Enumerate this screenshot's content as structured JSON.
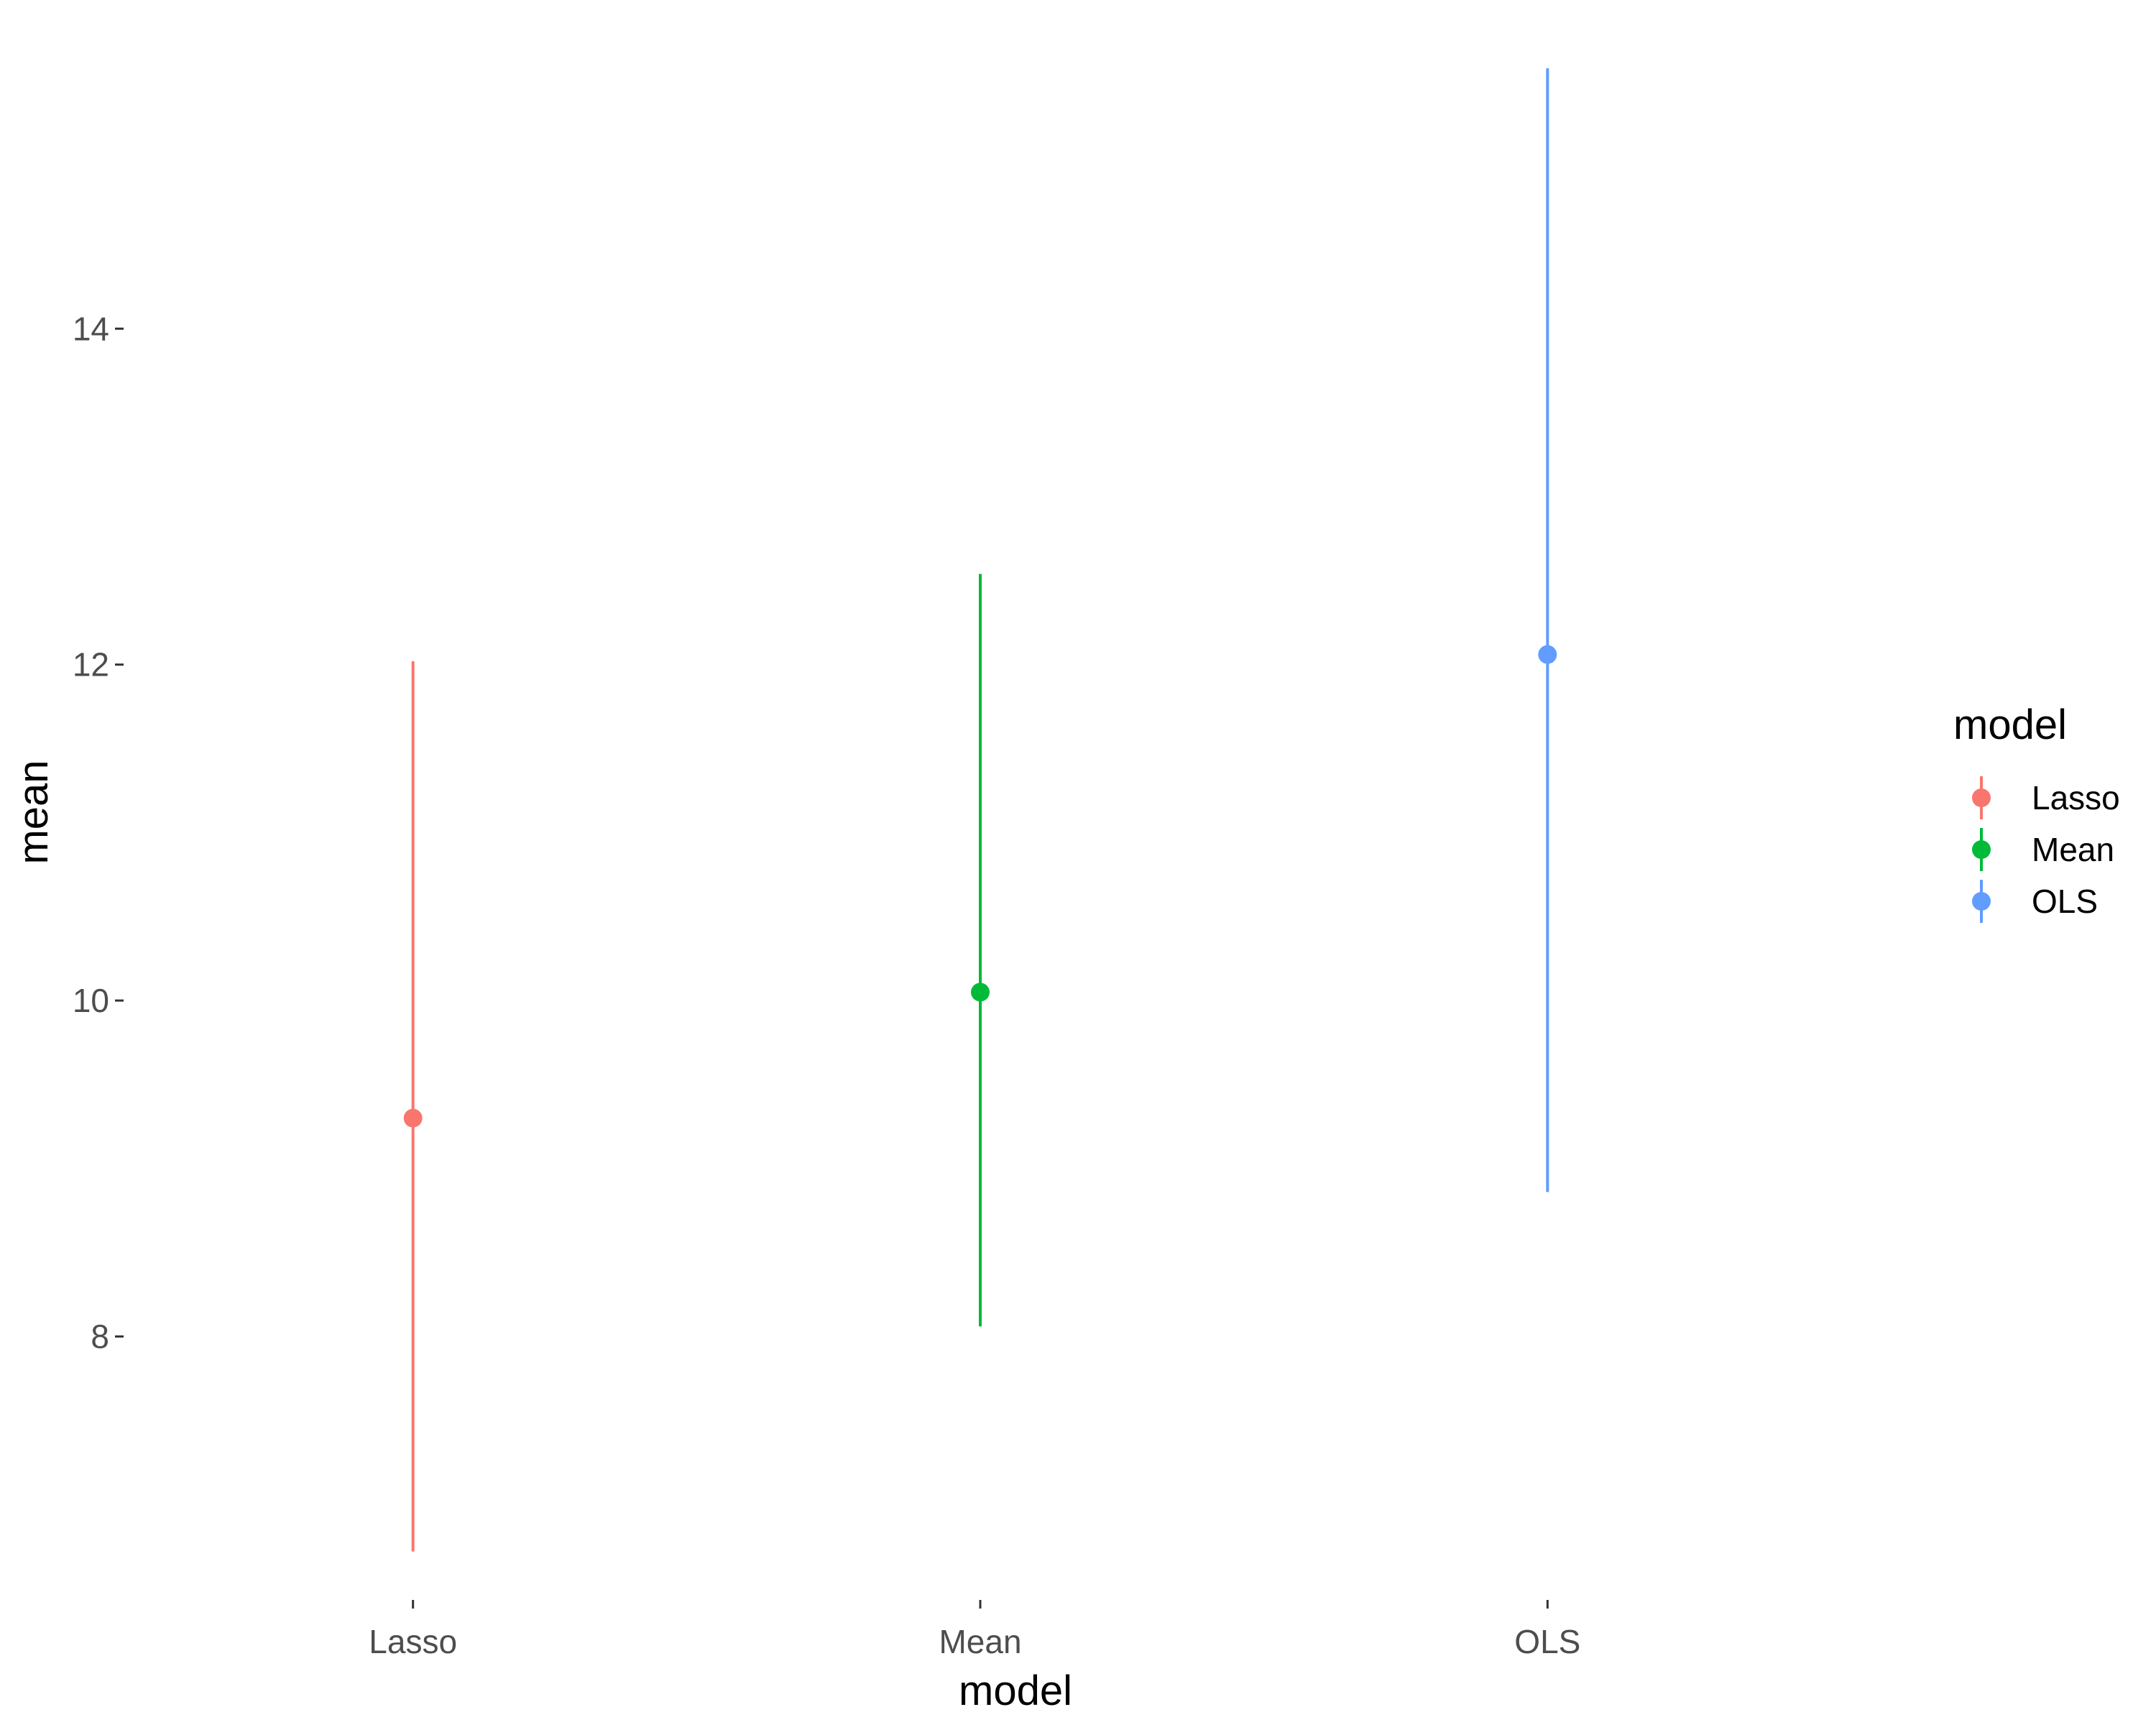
{
  "chart_data": {
    "type": "errorbar",
    "title": "",
    "xlabel": "model",
    "ylabel": "mean",
    "categories": [
      "Lasso",
      "Mean",
      "OLS"
    ],
    "series": [
      {
        "name": "Lasso",
        "x": "Lasso",
        "mean": 9.3,
        "lower": 6.72,
        "upper": 12.02,
        "color": "#F8766D"
      },
      {
        "name": "Mean",
        "x": "Mean",
        "mean": 10.05,
        "lower": 8.06,
        "upper": 12.54,
        "color": "#00BA38"
      },
      {
        "name": "OLS",
        "x": "OLS",
        "mean": 12.06,
        "lower": 8.86,
        "upper": 15.55,
        "color": "#619CFF"
      }
    ],
    "yticks": [
      8,
      10,
      12,
      14
    ],
    "ylim": [
      6.5,
      15.7
    ],
    "grid": false,
    "legend": {
      "title": "model",
      "placement": "right",
      "entries": [
        "Lasso",
        "Mean",
        "OLS"
      ]
    }
  }
}
